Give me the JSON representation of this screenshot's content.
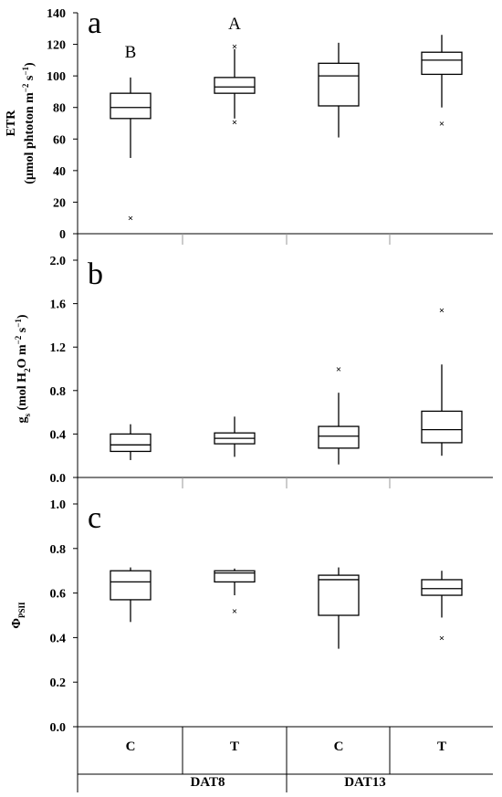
{
  "chart_data": [
    {
      "type": "box",
      "panel_label": "a",
      "ylabel_line1": "ETR",
      "ylabel_line2_parts": [
        {
          "t": "(μmol phtoton m"
        },
        {
          "t": "−2",
          "sup": true
        },
        {
          "t": " s"
        },
        {
          "t": "−1",
          "sup": true
        },
        {
          "t": ")"
        }
      ],
      "ylim": [
        0,
        140
      ],
      "yticks": [
        0,
        20,
        40,
        60,
        80,
        100,
        120,
        140
      ],
      "ytick_labels": [
        "0",
        "20",
        "40",
        "60",
        "80",
        "100",
        "120",
        "140"
      ],
      "boxes": [
        {
          "category": "C",
          "group": "DAT8",
          "min": 48,
          "q1": 73,
          "median": 80,
          "q3": 89,
          "max": 99,
          "outliers": [
            10
          ],
          "letter": "B"
        },
        {
          "category": "T",
          "group": "DAT8",
          "min": 73,
          "q1": 89,
          "median": 93,
          "q3": 99,
          "max": 117,
          "outliers": [
            119,
            71
          ],
          "letter": "A"
        },
        {
          "category": "C",
          "group": "DAT13",
          "min": 61,
          "q1": 81,
          "median": 100,
          "q3": 108,
          "max": 121,
          "outliers": []
        },
        {
          "category": "T",
          "group": "DAT13",
          "min": 80,
          "q1": 101,
          "median": 110,
          "q3": 115,
          "max": 126,
          "outliers": [
            70
          ]
        }
      ]
    },
    {
      "type": "box",
      "panel_label": "b",
      "ylabel_parts": [
        {
          "t": "g"
        },
        {
          "t": "s",
          "sub": true
        },
        {
          "t": " (mol H"
        },
        {
          "t": "2",
          "sub": true
        },
        {
          "t": "O m"
        },
        {
          "t": "−2",
          "sup": true
        },
        {
          "t": " s"
        },
        {
          "t": "−1",
          "sup": true
        },
        {
          "t": ")"
        }
      ],
      "ylim": [
        0,
        2
      ],
      "yticks": [
        0,
        0.4,
        0.8,
        1.2,
        1.6,
        2.0
      ],
      "ytick_labels": [
        "0.0",
        "0.4",
        "0.8",
        "1.2",
        "1.6",
        "2.0"
      ],
      "boxes": [
        {
          "category": "C",
          "group": "DAT8",
          "min": 0.16,
          "q1": 0.24,
          "median": 0.3,
          "q3": 0.4,
          "max": 0.49,
          "outliers": []
        },
        {
          "category": "T",
          "group": "DAT8",
          "min": 0.19,
          "q1": 0.31,
          "median": 0.36,
          "q3": 0.41,
          "max": 0.56,
          "outliers": []
        },
        {
          "category": "C",
          "group": "DAT13",
          "min": 0.12,
          "q1": 0.27,
          "median": 0.38,
          "q3": 0.47,
          "max": 0.78,
          "outliers": [
            1.0
          ]
        },
        {
          "category": "T",
          "group": "DAT13",
          "min": 0.2,
          "q1": 0.32,
          "median": 0.44,
          "q3": 0.61,
          "max": 1.04,
          "outliers": [
            1.54
          ]
        }
      ]
    },
    {
      "type": "box",
      "panel_label": "c",
      "ylabel_parts": [
        {
          "t": "Φ"
        },
        {
          "t": "PSII",
          "sub": true
        }
      ],
      "ylim": [
        0,
        1
      ],
      "yticks": [
        0,
        0.2,
        0.4,
        0.6,
        0.8,
        1.0
      ],
      "ytick_labels": [
        "0.0",
        "0.2",
        "0.4",
        "0.6",
        "0.8",
        "1.0"
      ],
      "boxes": [
        {
          "category": "C",
          "group": "DAT8",
          "min": 0.47,
          "q1": 0.57,
          "median": 0.65,
          "q3": 0.7,
          "max": 0.715,
          "outliers": []
        },
        {
          "category": "T",
          "group": "DAT8",
          "min": 0.59,
          "q1": 0.65,
          "median": 0.69,
          "q3": 0.7,
          "max": 0.71,
          "outliers": [
            0.52
          ]
        },
        {
          "category": "C",
          "group": "DAT13",
          "min": 0.35,
          "q1": 0.5,
          "median": 0.66,
          "q3": 0.68,
          "max": 0.715,
          "outliers": []
        },
        {
          "category": "T",
          "group": "DAT13",
          "min": 0.49,
          "q1": 0.59,
          "median": 0.62,
          "q3": 0.66,
          "max": 0.7,
          "outliers": [
            0.4
          ]
        }
      ]
    }
  ],
  "x_axis": {
    "categories": [
      "C",
      "T",
      "C",
      "T"
    ],
    "groups": [
      "DAT8",
      "DAT13"
    ]
  },
  "outlier_symbol": "×"
}
